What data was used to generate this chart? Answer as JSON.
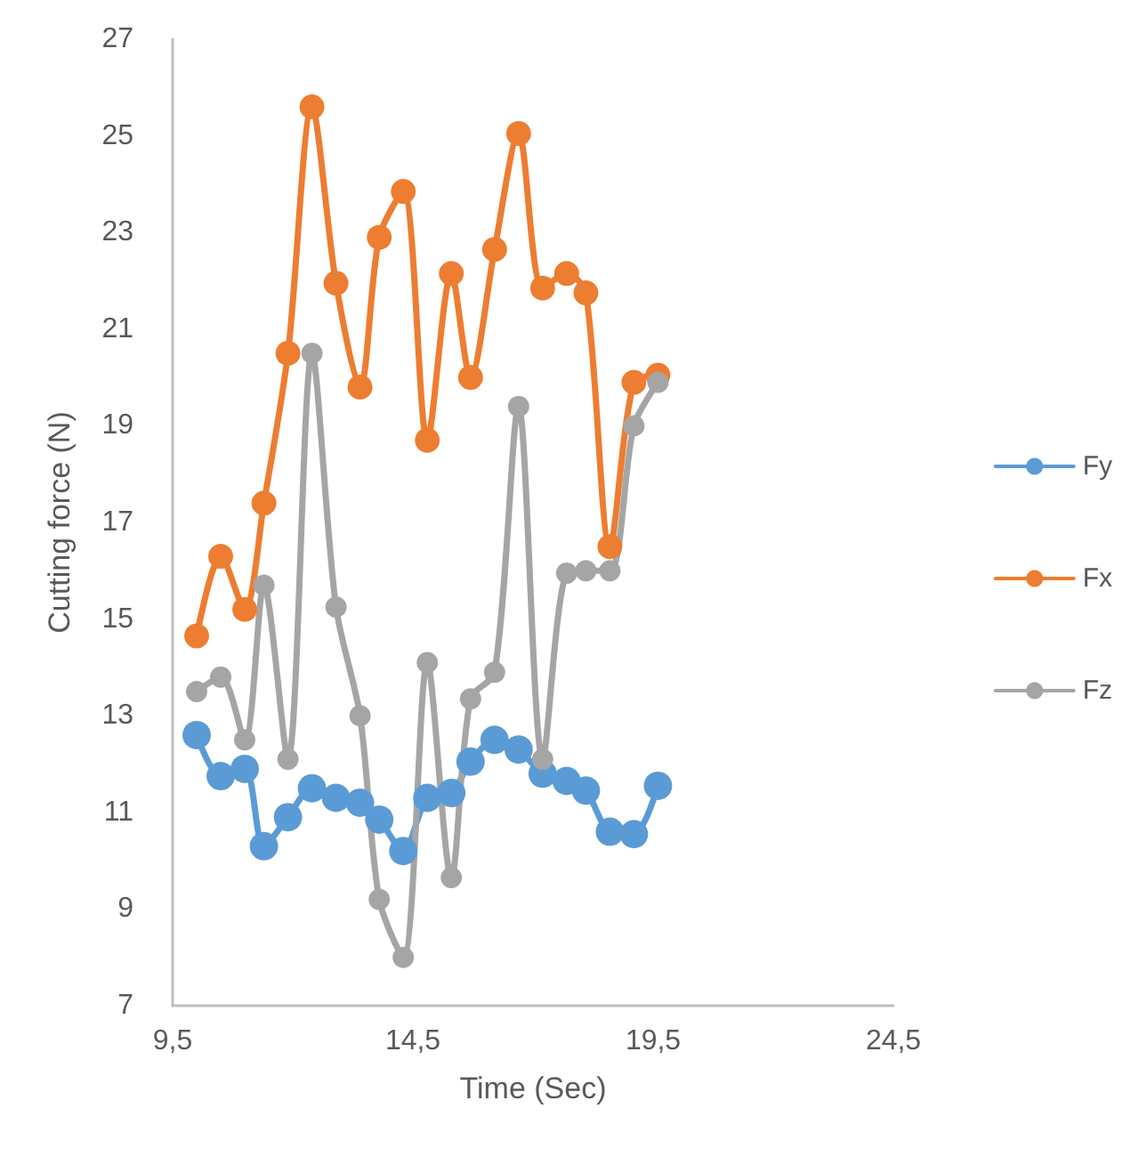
{
  "chart_data": {
    "type": "line",
    "xlabel": "Time (Sec)",
    "ylabel": "Cutting force (N)",
    "x": [
      10.0,
      10.5,
      11.0,
      11.4,
      11.9,
      12.4,
      12.9,
      13.4,
      13.8,
      14.3,
      14.8,
      15.3,
      15.7,
      16.2,
      16.7,
      17.2,
      17.7,
      18.1,
      18.6,
      19.1,
      19.6
    ],
    "series": [
      {
        "name": "Fy",
        "color": "#5b9bd5",
        "values": [
          12.6,
          11.75,
          11.9,
          10.3,
          10.9,
          11.5,
          11.3,
          11.2,
          10.85,
          10.2,
          11.3,
          11.4,
          12.05,
          12.5,
          12.3,
          11.8,
          11.65,
          11.45,
          10.6,
          10.55,
          11.55
        ]
      },
      {
        "name": "Fx",
        "color": "#ed7d31",
        "values": [
          14.65,
          16.3,
          15.2,
          17.4,
          20.5,
          25.6,
          21.95,
          19.8,
          22.9,
          23.85,
          18.7,
          22.15,
          20.0,
          22.65,
          25.05,
          21.85,
          22.15,
          21.75,
          16.5,
          19.9,
          20.05
        ]
      },
      {
        "name": "Fz",
        "color": "#a5a5a5",
        "values": [
          13.5,
          13.8,
          12.5,
          15.7,
          12.1,
          20.5,
          15.25,
          13.0,
          9.2,
          8.0,
          14.1,
          9.65,
          13.35,
          13.9,
          19.4,
          12.1,
          15.95,
          16.0,
          16.0,
          19.0,
          19.9
        ]
      }
    ],
    "xlim": [
      9.5,
      24.5
    ],
    "xticks": [
      {
        "value": 9.5,
        "label": "9,5"
      },
      {
        "value": 14.5,
        "label": "14,5"
      },
      {
        "value": 19.5,
        "label": "19,5"
      },
      {
        "value": 24.5,
        "label": "24,5"
      }
    ],
    "ylim": [
      7,
      27
    ],
    "yticks": [
      7,
      9,
      11,
      13,
      15,
      17,
      19,
      21,
      23,
      25,
      27
    ],
    "grid": false,
    "legend": "right",
    "marker": "circle",
    "line_style": "solid"
  }
}
